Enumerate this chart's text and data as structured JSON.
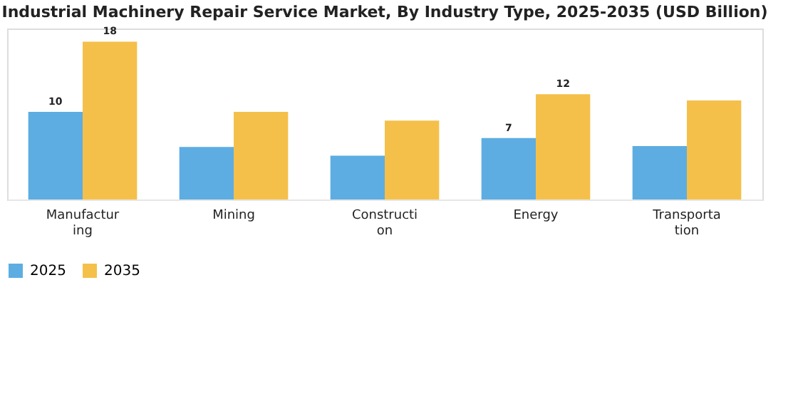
{
  "chart_data": {
    "type": "bar",
    "title": "Industrial Machinery Repair Service Market, By Industry Type, 2025-2035 (USD Billion)",
    "categories": [
      "Manufacturing",
      "Mining",
      "Construction",
      "Energy",
      "Transportation"
    ],
    "series": [
      {
        "name": "2025",
        "color": "#5dade2",
        "values": [
          10,
          6,
          5,
          7,
          6.1
        ],
        "value_labels": [
          "10",
          null,
          null,
          "7",
          null
        ]
      },
      {
        "name": "2035",
        "color": "#f5c04a",
        "values": [
          18,
          10,
          9,
          12,
          11.3
        ],
        "value_labels": [
          "18",
          null,
          null,
          "12",
          null
        ]
      }
    ],
    "ylim": [
      0,
      19.5
    ],
    "tick_labels": "x",
    "grid": false,
    "legend": "bottom"
  }
}
